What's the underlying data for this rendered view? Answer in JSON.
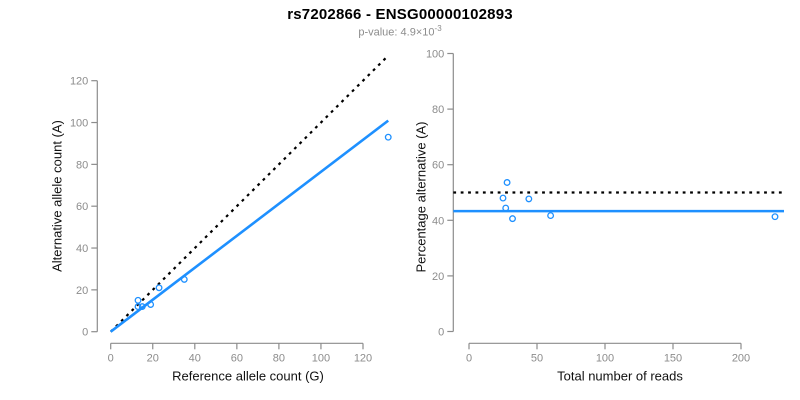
{
  "header": {
    "title": "rs7202866 - ENSG00000102893",
    "pvalue_label": "p-value: ",
    "pvalue_coefficient": "4.9",
    "times_symbol": "×",
    "pvalue_base": "10",
    "pvalue_exponent": "-3"
  },
  "colors": {
    "accent_blue": "#1E90FF",
    "axis_gray": "#8c8c8c",
    "tick_label_gray": "#8c8c8c",
    "line_black": "#000000"
  },
  "chart_data": [
    {
      "type": "scatter",
      "name": "allele-counts-plot",
      "xlabel": "Reference allele count (G)",
      "ylabel": "Alternative allele count (A)",
      "xlim": [
        0,
        137
      ],
      "ylim": [
        0,
        136
      ],
      "xticks": [
        0,
        20,
        40,
        60,
        80,
        100,
        120
      ],
      "yticks": [
        0,
        20,
        40,
        60,
        80,
        100,
        120
      ],
      "grid": false,
      "point_color": "#1E90FF",
      "points": [
        {
          "x": 13,
          "y": 15
        },
        {
          "x": 13,
          "y": 12
        },
        {
          "x": 15,
          "y": 12
        },
        {
          "x": 19,
          "y": 13
        },
        {
          "x": 23,
          "y": 21
        },
        {
          "x": 35,
          "y": 25
        },
        {
          "x": 132,
          "y": 93
        }
      ],
      "lines": [
        {
          "name": "identity-line",
          "style": "dotted",
          "color": "#000000",
          "x1": 0,
          "y1": 0,
          "x2": 131,
          "y2": 131
        },
        {
          "name": "fitted-ratio-line",
          "style": "solid",
          "color": "#1E90FF",
          "x1": 0,
          "y1": 0,
          "x2": 132,
          "y2": 100.9,
          "slope": 0.764
        }
      ]
    },
    {
      "type": "scatter",
      "name": "percentage-alternative-plot",
      "xlabel": "Total number of reads",
      "ylabel": "Percentage alternative (A)",
      "xlim": [
        -9,
        233
      ],
      "ylim": [
        0,
        100
      ],
      "xticks": [
        0,
        50,
        100,
        150,
        200
      ],
      "yticks": [
        0,
        20,
        40,
        60,
        80,
        100
      ],
      "grid": false,
      "point_color": "#1E90FF",
      "points": [
        {
          "x": 28,
          "y": 53.6
        },
        {
          "x": 25,
          "y": 48.0
        },
        {
          "x": 27,
          "y": 44.4
        },
        {
          "x": 32,
          "y": 40.6
        },
        {
          "x": 44,
          "y": 47.7
        },
        {
          "x": 60,
          "y": 41.7
        },
        {
          "x": 225,
          "y": 41.3
        }
      ],
      "lines": [
        {
          "name": "expected-50-percent-line",
          "style": "dotted",
          "color": "#000000",
          "hline": 50
        },
        {
          "name": "fitted-percentage-line",
          "style": "solid",
          "color": "#1E90FF",
          "hline": 43.3
        }
      ]
    }
  ]
}
